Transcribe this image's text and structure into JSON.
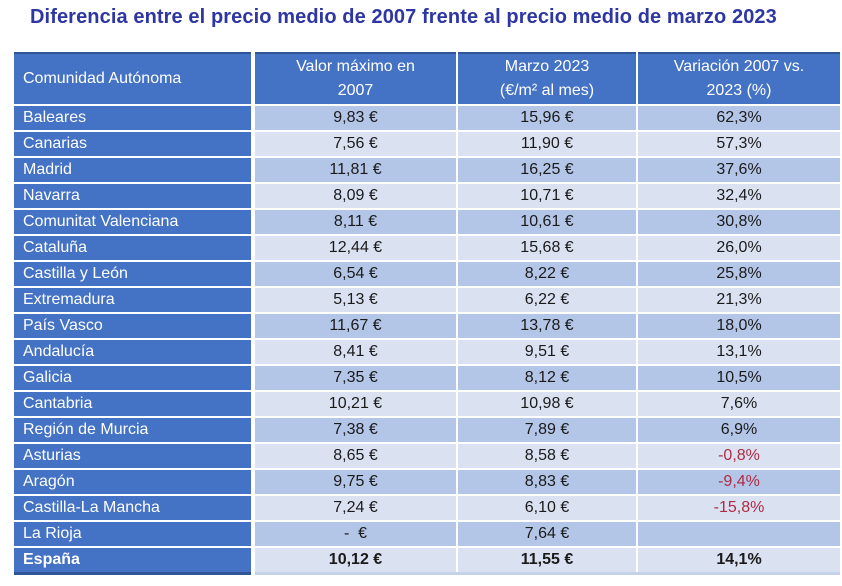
{
  "title": "Diferencia entre el precio medio de 2007 frente al precio medio de marzo 2023",
  "colors": {
    "title_text": "#2E36A3",
    "header_background": "#4472C4",
    "row_label_background": "#4472C4",
    "band_dark": "#B4C6E7",
    "band_light": "#DAE2F2",
    "outer_border": "#2F5597",
    "negative_value": "#AF2B43",
    "cell_text": "#1A1A1A",
    "header_text": "#FFFFFF"
  },
  "table": {
    "headers": [
      "Comunidad Autónoma",
      "Valor máximo en\n2007",
      "Marzo 2023\n(€/m² al mes)",
      "Variación 2007 vs.\n2023 (%)"
    ],
    "rows": [
      {
        "name": "Baleares",
        "v2007": "9,83 €",
        "v2023": "15,96 €",
        "variation": "62,3%",
        "negative": false,
        "bold": false
      },
      {
        "name": "Canarias",
        "v2007": "7,56 €",
        "v2023": "11,90 €",
        "variation": "57,3%",
        "negative": false,
        "bold": false
      },
      {
        "name": "Madrid",
        "v2007": "11,81 €",
        "v2023": "16,25 €",
        "variation": "37,6%",
        "negative": false,
        "bold": false
      },
      {
        "name": "Navarra",
        "v2007": "8,09 €",
        "v2023": "10,71 €",
        "variation": "32,4%",
        "negative": false,
        "bold": false
      },
      {
        "name": "Comunitat Valenciana",
        "v2007": "8,11 €",
        "v2023": "10,61 €",
        "variation": "30,8%",
        "negative": false,
        "bold": false
      },
      {
        "name": "Cataluña",
        "v2007": "12,44 €",
        "v2023": "15,68 €",
        "variation": "26,0%",
        "negative": false,
        "bold": false
      },
      {
        "name": "Castilla y León",
        "v2007": "6,54 €",
        "v2023": "8,22 €",
        "variation": "25,8%",
        "negative": false,
        "bold": false
      },
      {
        "name": "Extremadura",
        "v2007": "5,13 €",
        "v2023": "6,22 €",
        "variation": "21,3%",
        "negative": false,
        "bold": false
      },
      {
        "name": "País Vasco",
        "v2007": "11,67 €",
        "v2023": "13,78 €",
        "variation": "18,0%",
        "negative": false,
        "bold": false
      },
      {
        "name": "Andalucía",
        "v2007": "8,41 €",
        "v2023": "9,51 €",
        "variation": "13,1%",
        "negative": false,
        "bold": false
      },
      {
        "name": "Galicia",
        "v2007": "7,35 €",
        "v2023": "8,12 €",
        "variation": "10,5%",
        "negative": false,
        "bold": false
      },
      {
        "name": "Cantabria",
        "v2007": "10,21 €",
        "v2023": "10,98 €",
        "variation": "7,6%",
        "negative": false,
        "bold": false
      },
      {
        "name": "Región de Murcia",
        "v2007": "7,38 €",
        "v2023": "7,89 €",
        "variation": "6,9%",
        "negative": false,
        "bold": false
      },
      {
        "name": "Asturias",
        "v2007": "8,65 €",
        "v2023": "8,58 €",
        "variation": "-0,8%",
        "negative": true,
        "bold": false
      },
      {
        "name": "Aragón",
        "v2007": "9,75 €",
        "v2023": "8,83 €",
        "variation": "-9,4%",
        "negative": true,
        "bold": false
      },
      {
        "name": "Castilla-La Mancha",
        "v2007": "7,24 €",
        "v2023": "6,10 €",
        "variation": "-15,8%",
        "negative": true,
        "bold": false
      },
      {
        "name": "La Rioja",
        "v2007": "-  €",
        "v2023": "7,64 €",
        "variation": "",
        "negative": false,
        "bold": false
      },
      {
        "name": "España",
        "v2007": "10,12 €",
        "v2023": "11,55 €",
        "variation": "14,1%",
        "negative": false,
        "bold": true
      }
    ]
  },
  "chart_data": {
    "type": "table",
    "title": "Diferencia entre el precio medio de 2007 frente al precio medio de marzo 2023",
    "columns": [
      "Comunidad Autónoma",
      "Valor máximo en 2007",
      "Marzo 2023 (€/m² al mes)",
      "Variación 2007 vs. 2023 (%)"
    ],
    "categories": [
      "Baleares",
      "Canarias",
      "Madrid",
      "Navarra",
      "Comunitat Valenciana",
      "Cataluña",
      "Castilla y León",
      "Extremadura",
      "País Vasco",
      "Andalucía",
      "Galicia",
      "Cantabria",
      "Región de Murcia",
      "Asturias",
      "Aragón",
      "Castilla-La Mancha",
      "La Rioja",
      "España"
    ],
    "series": [
      {
        "name": "Valor máximo en 2007 (€/m² al mes)",
        "values": [
          9.83,
          7.56,
          11.81,
          8.09,
          8.11,
          12.44,
          6.54,
          5.13,
          11.67,
          8.41,
          7.35,
          10.21,
          7.38,
          8.65,
          9.75,
          7.24,
          null,
          10.12
        ]
      },
      {
        "name": "Marzo 2023 (€/m² al mes)",
        "values": [
          15.96,
          11.9,
          16.25,
          10.71,
          10.61,
          15.68,
          8.22,
          6.22,
          13.78,
          9.51,
          8.12,
          10.98,
          7.89,
          8.58,
          8.83,
          6.1,
          7.64,
          11.55
        ]
      },
      {
        "name": "Variación 2007 vs. 2023 (%)",
        "values": [
          62.3,
          57.3,
          37.6,
          32.4,
          30.8,
          26.0,
          25.8,
          21.3,
          18.0,
          13.1,
          10.5,
          7.6,
          6.9,
          -0.8,
          -9.4,
          -15.8,
          null,
          14.1
        ]
      }
    ]
  }
}
